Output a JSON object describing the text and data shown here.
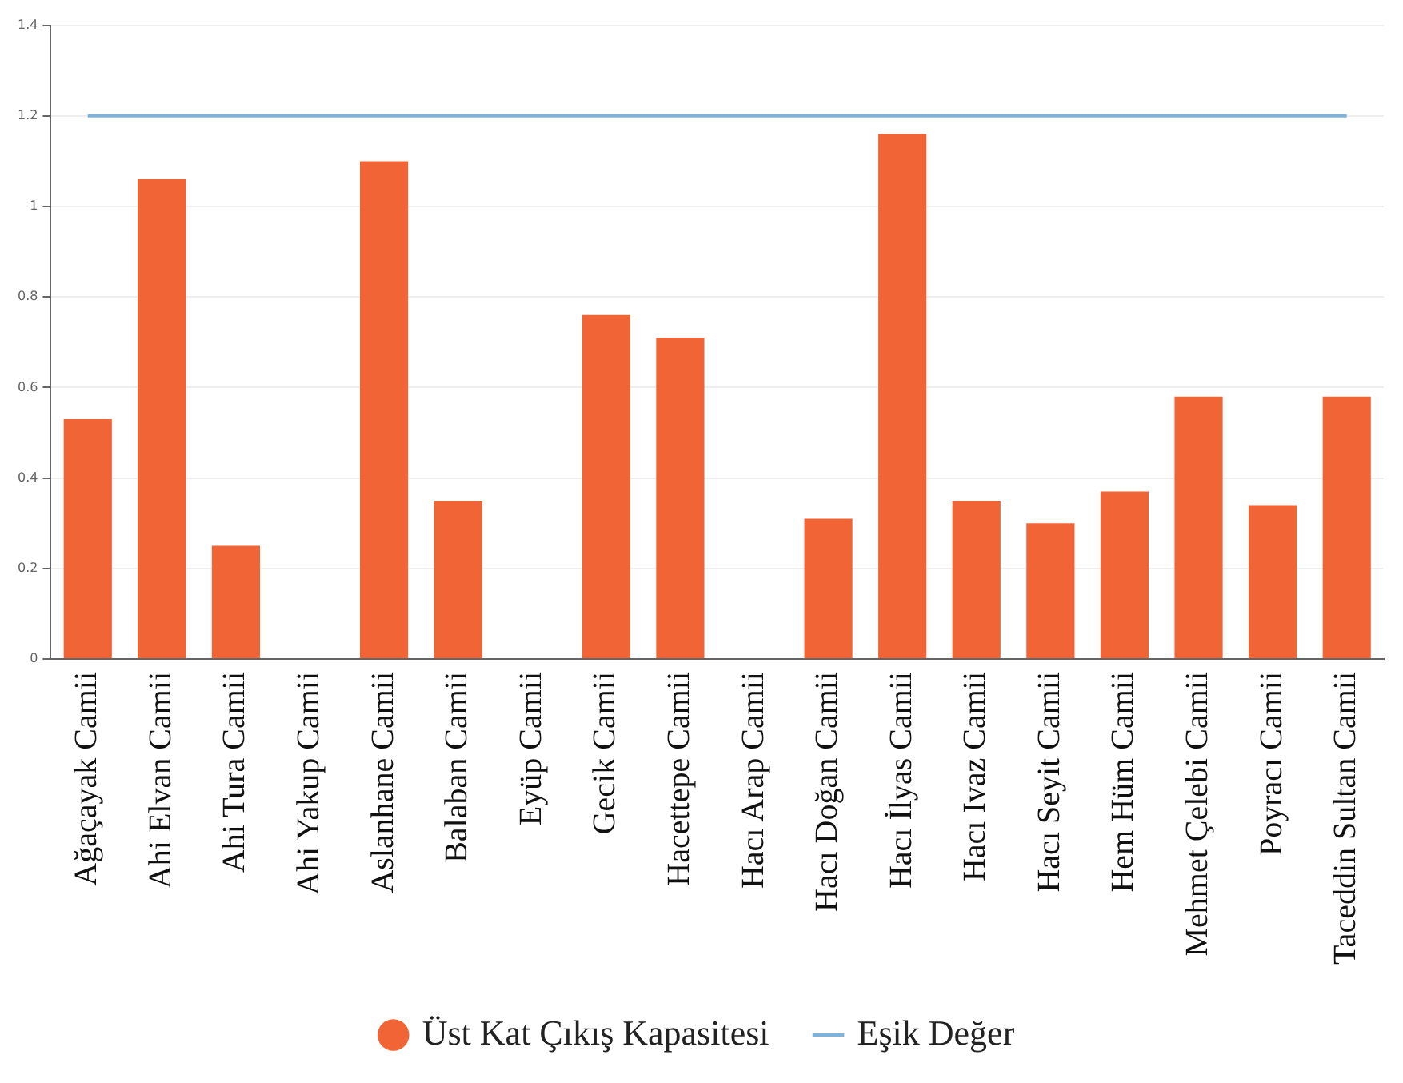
{
  "chart_data": {
    "type": "bar",
    "categories": [
      "Ağaçayak Camii",
      "Ahi Elvan Camii",
      "Ahi Tura Camii",
      "Ahi Yakup Camii",
      "Aslanhane Camii",
      "Balaban Camii",
      "Eyüp Camii",
      "Gecik Camii",
      "Hacettepe Camii",
      "Hacı Arap Camii",
      "Hacı Doğan Camii",
      "Hacı İlyas Camii",
      "Hacı Ivaz Camii",
      "Hacı Seyit Camii",
      "Hem Hüm Camii",
      "Mehmet Çelebi Camii",
      "Poyracı Camii",
      "Taceddin Sultan Camii"
    ],
    "series": [
      {
        "name": "Üst Kat Çıkış Kapasitesi",
        "color": "#f06436",
        "values": [
          0.53,
          1.06,
          0.25,
          0,
          1.1,
          0.35,
          0,
          0.76,
          0.71,
          0,
          0.31,
          1.16,
          0.35,
          0.3,
          0.37,
          0.58,
          0.34,
          0.58
        ]
      },
      {
        "name": "Eşik Değer",
        "type": "line",
        "color": "#7fb2d9",
        "values": [
          1.2,
          1.2,
          1.2,
          1.2,
          1.2,
          1.2,
          1.2,
          1.2,
          1.2,
          1.2,
          1.2,
          1.2,
          1.2,
          1.2,
          1.2,
          1.2,
          1.2,
          1.2
        ]
      }
    ],
    "ylim": [
      0,
      1.4
    ],
    "yticks": [
      0,
      0.2,
      0.4,
      0.6,
      0.8,
      1,
      1.2,
      1.4
    ],
    "grid": "y",
    "legend": "bottom",
    "marker": "none"
  }
}
